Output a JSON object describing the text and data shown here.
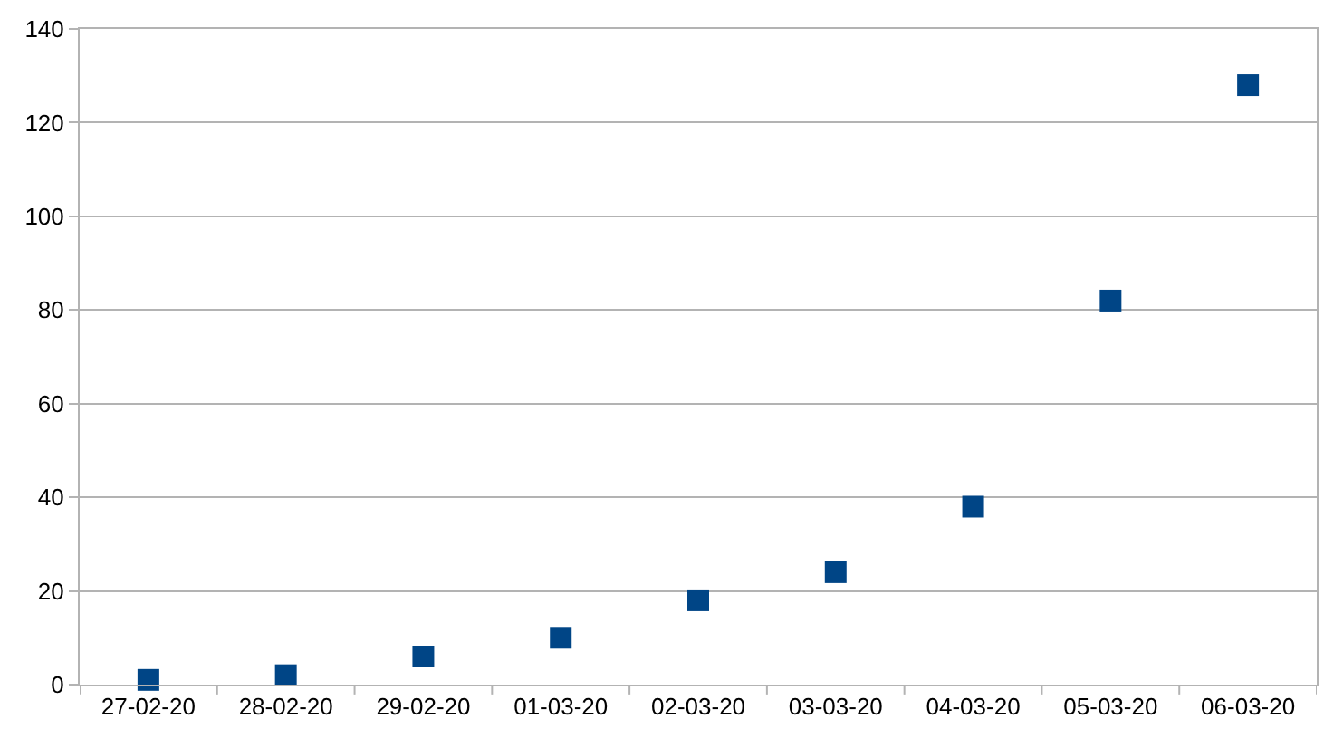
{
  "chart_data": {
    "type": "scatter",
    "categories": [
      "27-02-20",
      "28-02-20",
      "29-02-20",
      "01-03-20",
      "02-03-20",
      "03-03-20",
      "04-03-20",
      "05-03-20",
      "06-03-20"
    ],
    "series": [
      {
        "color": "#004586",
        "values": [
          1,
          2,
          6,
          10,
          18,
          24,
          38,
          82,
          128
        ]
      }
    ],
    "marker": "square",
    "ylim": [
      0,
      140
    ],
    "yticks": [
      0,
      20,
      40,
      60,
      80,
      100,
      120,
      140
    ],
    "grid": "y"
  }
}
